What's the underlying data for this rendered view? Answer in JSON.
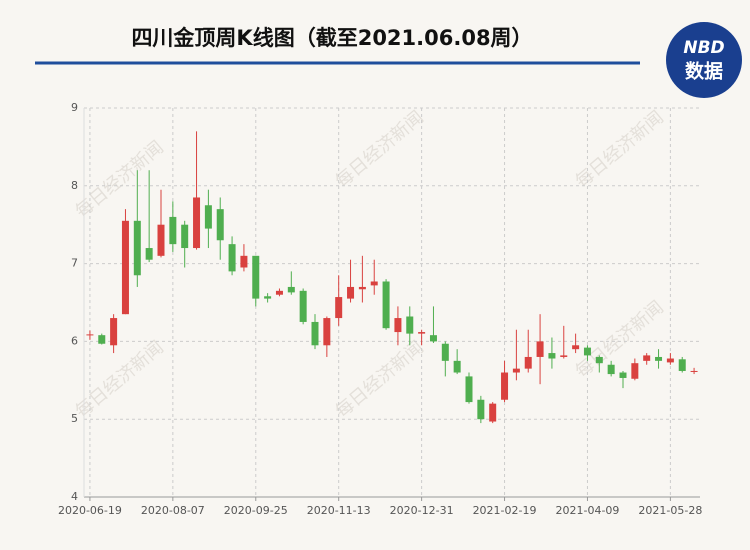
{
  "chart_data": {
    "type": "candlestick",
    "title": "四川金顶周K线图（截至2021.06.08周）",
    "logo": {
      "top": "NBD",
      "bottom": "数据"
    },
    "watermark": "每日经济新闻",
    "categories": [
      "2020-06-19",
      null,
      null,
      null,
      null,
      null,
      null,
      "2020-08-07",
      null,
      null,
      null,
      null,
      null,
      null,
      "2020-09-25",
      null,
      null,
      null,
      null,
      null,
      null,
      "2020-11-13",
      null,
      null,
      null,
      null,
      null,
      null,
      "2020-12-31",
      null,
      null,
      null,
      null,
      null,
      null,
      "2021-02-19",
      null,
      null,
      null,
      null,
      null,
      null,
      "2021-04-09",
      null,
      null,
      null,
      null,
      null,
      null,
      "2021-05-28",
      null,
      null
    ],
    "open": [
      6.08,
      6.08,
      5.95,
      6.35,
      7.55,
      7.2,
      7.1,
      7.6,
      7.5,
      7.2,
      7.75,
      7.7,
      7.25,
      6.95,
      7.1,
      6.58,
      6.6,
      6.7,
      6.65,
      6.25,
      5.95,
      6.3,
      6.55,
      6.67,
      6.72,
      6.77,
      6.12,
      6.32,
      6.1,
      6.08,
      5.97,
      5.75,
      5.55,
      5.25,
      4.97,
      5.25,
      5.6,
      5.65,
      5.8,
      5.85,
      5.8,
      5.9,
      5.92,
      5.8,
      5.7,
      5.6,
      5.52,
      5.75,
      5.8,
      5.73,
      5.77,
      5.61
    ],
    "high": [
      6.14,
      6.1,
      6.35,
      7.7,
      8.2,
      8.2,
      7.95,
      7.8,
      7.55,
      8.7,
      7.95,
      7.85,
      7.35,
      7.25,
      7.1,
      6.62,
      6.68,
      6.9,
      6.68,
      6.35,
      6.32,
      6.85,
      7.05,
      7.1,
      7.05,
      6.8,
      6.45,
      6.45,
      6.15,
      6.45,
      6.0,
      5.9,
      5.6,
      5.3,
      5.22,
      5.75,
      6.15,
      6.15,
      6.35,
      6.05,
      6.2,
      6.1,
      5.95,
      5.82,
      5.75,
      5.62,
      5.78,
      5.85,
      5.9,
      5.85,
      5.8,
      5.66
    ],
    "low": [
      6.02,
      5.96,
      5.85,
      6.35,
      6.7,
      7.02,
      7.08,
      7.15,
      6.95,
      7.18,
      7.2,
      7.05,
      6.85,
      6.9,
      6.45,
      6.5,
      6.58,
      6.6,
      6.22,
      5.9,
      5.8,
      6.2,
      6.5,
      6.5,
      6.6,
      6.15,
      5.95,
      5.95,
      5.95,
      5.98,
      5.55,
      5.58,
      5.2,
      4.95,
      4.95,
      5.22,
      5.5,
      5.6,
      5.45,
      5.65,
      5.78,
      5.85,
      5.75,
      5.6,
      5.55,
      5.4,
      5.5,
      5.7,
      5.65,
      5.7,
      5.6,
      5.58
    ],
    "close": [
      6.09,
      5.97,
      6.3,
      7.55,
      6.85,
      7.05,
      7.5,
      7.25,
      7.2,
      7.85,
      7.45,
      7.3,
      6.9,
      7.1,
      6.55,
      6.55,
      6.65,
      6.63,
      6.25,
      5.95,
      6.3,
      6.57,
      6.7,
      6.7,
      6.77,
      6.17,
      6.3,
      6.1,
      6.12,
      6.0,
      5.75,
      5.6,
      5.22,
      5.0,
      5.2,
      5.6,
      5.65,
      5.8,
      6.0,
      5.78,
      5.82,
      5.95,
      5.82,
      5.72,
      5.58,
      5.53,
      5.72,
      5.82,
      5.75,
      5.78,
      5.62,
      5.62
    ],
    "up_color": "#d9413f",
    "down_color": "#4fae4f",
    "ylim": [
      4,
      9
    ],
    "yticks": [
      4,
      5,
      6,
      7,
      8,
      9
    ],
    "grid": true
  }
}
